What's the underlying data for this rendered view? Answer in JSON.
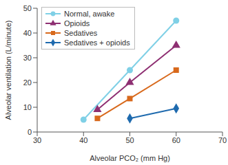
{
  "chart_data": {
    "type": "line",
    "x_label": "Alveolar PCO₂ (mm Hg)",
    "y_label": "Alveolar ventilation (L/minute)",
    "xlim": [
      30,
      70
    ],
    "xticks": [
      30,
      40,
      50,
      60,
      70
    ],
    "ylim": [
      0,
      50
    ],
    "yticks": [
      0,
      10,
      20,
      30,
      40,
      50
    ],
    "grid": false,
    "legend": "upper left",
    "series": [
      {
        "name": "Normal, awake",
        "color": "#7fd0e6",
        "marker": "circle",
        "x": [
          40,
          50,
          60
        ],
        "values": [
          5,
          25,
          45
        ]
      },
      {
        "name": "Opioids",
        "color": "#8e2f72",
        "marker": "triangle",
        "x": [
          43,
          50,
          60
        ],
        "values": [
          9,
          20,
          35
        ]
      },
      {
        "name": "Sedatives",
        "color": "#d8691c",
        "marker": "square",
        "x": [
          43,
          50,
          60
        ],
        "values": [
          5.5,
          13.5,
          25
        ]
      },
      {
        "name": "Sedatives + opioids",
        "color": "#1e6aae",
        "marker": "diamond",
        "x": [
          50,
          60
        ],
        "values": [
          5.5,
          9.5
        ]
      }
    ]
  }
}
